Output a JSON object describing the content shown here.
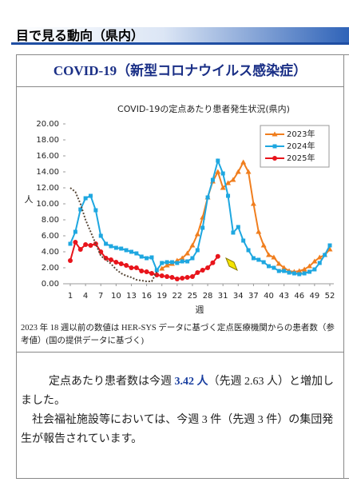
{
  "header": {
    "title": "目で見る動向（県内）"
  },
  "section": {
    "title": "COVID-19（新型コロナウイルス感染症）"
  },
  "chart_data": {
    "type": "line",
    "title": "COVID-19の定点あたり患者発生状況(県内)",
    "x_label": "週",
    "y_label": "人",
    "x": [
      1,
      2,
      3,
      4,
      5,
      6,
      7,
      8,
      9,
      10,
      11,
      12,
      13,
      14,
      15,
      16,
      17,
      18,
      19,
      20,
      21,
      22,
      23,
      24,
      25,
      26,
      27,
      28,
      29,
      30,
      31,
      32,
      33,
      34,
      35,
      36,
      37,
      38,
      39,
      40,
      41,
      42,
      43,
      44,
      45,
      46,
      47,
      48,
      49,
      50,
      51,
      52
    ],
    "xlim": [
      1,
      52
    ],
    "xticks": [
      1,
      4,
      7,
      10,
      13,
      16,
      19,
      22,
      25,
      28,
      31,
      34,
      37,
      40,
      43,
      46,
      49,
      52
    ],
    "ylim": [
      0,
      20
    ],
    "yticks": [
      {
        "value": 0,
        "label": "0.00"
      },
      {
        "value": 2,
        "label": "2.00"
      },
      {
        "value": 4,
        "label": "4.00"
      },
      {
        "value": 6,
        "label": "6.00"
      },
      {
        "value": 8,
        "label": "8.00"
      },
      {
        "value": 10,
        "label": "10.00"
      },
      {
        "value": 12,
        "label": "12.00"
      },
      {
        "value": 14,
        "label": "14.00"
      },
      {
        "value": 16,
        "label": "16.00"
      },
      {
        "value": 18,
        "label": "18.00"
      },
      {
        "value": 20,
        "label": "20.00"
      }
    ],
    "grid": false,
    "legend": "top-right",
    "series": [
      {
        "name": "2023年",
        "color": "#f07e1e",
        "marker": "triangle",
        "values": [
          null,
          null,
          null,
          null,
          null,
          null,
          null,
          null,
          null,
          null,
          null,
          null,
          null,
          null,
          null,
          null,
          null,
          null,
          1.9,
          2.3,
          2.5,
          2.9,
          3.2,
          3.8,
          4.8,
          6.2,
          8.3,
          10.8,
          12.8,
          14.0,
          12.0,
          12.6,
          13.0,
          14.0,
          15.2,
          14.0,
          10.0,
          6.5,
          4.8,
          3.6,
          3.3,
          2.5,
          2.0,
          1.6,
          1.5,
          1.6,
          1.8,
          2.2,
          2.8,
          3.3,
          3.6,
          4.3
        ]
      },
      {
        "name": "2024年",
        "color": "#1ea7e0",
        "marker": "square",
        "values": [
          5.0,
          6.5,
          9.3,
          10.7,
          11.0,
          9.2,
          6.0,
          5.0,
          4.7,
          4.5,
          4.4,
          4.2,
          4.0,
          3.8,
          3.4,
          3.2,
          3.3,
          1.7,
          2.6,
          2.7,
          2.7,
          2.6,
          2.8,
          2.8,
          3.2,
          4.2,
          7.0,
          10.8,
          13.0,
          15.4,
          13.8,
          11.0,
          6.4,
          7.1,
          5.4,
          4.2,
          3.2,
          3.0,
          2.7,
          2.2,
          2.0,
          1.6,
          1.6,
          1.4,
          1.3,
          1.2,
          1.3,
          1.5,
          1.8,
          2.6,
          3.6,
          4.8
        ]
      },
      {
        "name": "2025年",
        "color": "#e8141b",
        "marker": "circle",
        "values": [
          2.9,
          5.2,
          4.3,
          4.9,
          4.8,
          5.0,
          4.0,
          3.2,
          3.0,
          2.7,
          2.5,
          2.3,
          2.0,
          2.0,
          1.6,
          1.5,
          1.3,
          1.1,
          1.0,
          0.9,
          0.8,
          0.6,
          0.7,
          0.8,
          0.9,
          1.4,
          1.7,
          2.0,
          2.63,
          3.42,
          null,
          null,
          null,
          null,
          null,
          null,
          null,
          null,
          null,
          null,
          null,
          null,
          null,
          null,
          null,
          null,
          null,
          null,
          null,
          null,
          null,
          null
        ]
      },
      {
        "color": "#5a4a3a",
        "style": "dotted",
        "values": [
          12.0,
          11.5,
          10.0,
          8.0,
          6.5,
          5.0,
          3.5,
          3.0,
          2.5,
          1.8,
          1.3,
          1.0,
          0.8,
          0.5,
          0.4,
          0.3,
          0.3,
          1.5,
          null,
          null,
          null,
          null,
          null,
          null,
          null,
          null,
          null,
          null,
          null,
          null,
          null,
          null,
          null,
          null,
          null,
          null,
          null,
          null,
          null,
          null,
          null,
          null,
          null,
          null,
          null,
          null,
          null,
          null,
          null,
          null,
          null,
          null
        ]
      }
    ]
  },
  "note": "2023 年 18 週以前の数値は HER-SYS データに基づく定点医療機関からの患者数（参考値）(国の提供データに基づく)",
  "summary": {
    "p1": [
      "定点あたり患者数は今週 ",
      "3.42 人",
      "（先週 2.63 人）と増加しました。"
    ],
    "p2": "社会福祉施設等においては、今週 3 件（先週 3 件）の集団発生が報告されています。"
  }
}
